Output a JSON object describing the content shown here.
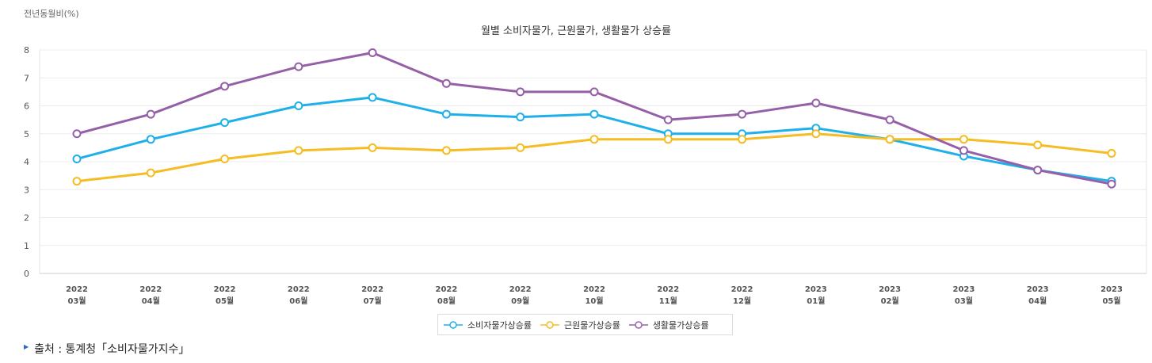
{
  "unit_label": "전년동월비(%)",
  "source_text": "출처 : 통계청「소비자물가지수」",
  "chart_data": {
    "type": "line",
    "title": "월별 소비자물가, 근원물가, 생활물가 상승률",
    "xlabel": "",
    "ylabel": "전년동월비(%)",
    "ylim": [
      0,
      8
    ],
    "y_ticks": [
      0,
      1,
      2,
      3,
      4,
      5,
      6,
      7,
      8
    ],
    "grid": true,
    "legend_position": "bottom",
    "categories": [
      {
        "year": "2022",
        "month": "03월"
      },
      {
        "year": "2022",
        "month": "04월"
      },
      {
        "year": "2022",
        "month": "05월"
      },
      {
        "year": "2022",
        "month": "06월"
      },
      {
        "year": "2022",
        "month": "07월"
      },
      {
        "year": "2022",
        "month": "08월"
      },
      {
        "year": "2022",
        "month": "09월"
      },
      {
        "year": "2022",
        "month": "10월"
      },
      {
        "year": "2022",
        "month": "11월"
      },
      {
        "year": "2022",
        "month": "12월"
      },
      {
        "year": "2023",
        "month": "01월"
      },
      {
        "year": "2023",
        "month": "02월"
      },
      {
        "year": "2023",
        "month": "03월"
      },
      {
        "year": "2023",
        "month": "04월"
      },
      {
        "year": "2023",
        "month": "05월"
      }
    ],
    "series": [
      {
        "name": "소비자물가상승률",
        "color": "#1fb0ea",
        "values": [
          4.1,
          4.8,
          5.4,
          6.0,
          6.3,
          5.7,
          5.6,
          5.7,
          5.0,
          5.0,
          5.2,
          4.8,
          4.2,
          3.7,
          3.3
        ]
      },
      {
        "name": "근원물가상승률",
        "color": "#f5bd22",
        "values": [
          3.3,
          3.6,
          4.1,
          4.4,
          4.5,
          4.4,
          4.5,
          4.8,
          4.8,
          4.8,
          5.0,
          4.8,
          4.8,
          4.6,
          4.3
        ]
      },
      {
        "name": "생활물가상승률",
        "color": "#9660a8",
        "values": [
          5.0,
          5.7,
          6.7,
          7.4,
          7.9,
          6.8,
          6.5,
          6.5,
          5.5,
          5.7,
          6.1,
          5.5,
          4.4,
          3.7,
          3.2
        ]
      }
    ]
  }
}
